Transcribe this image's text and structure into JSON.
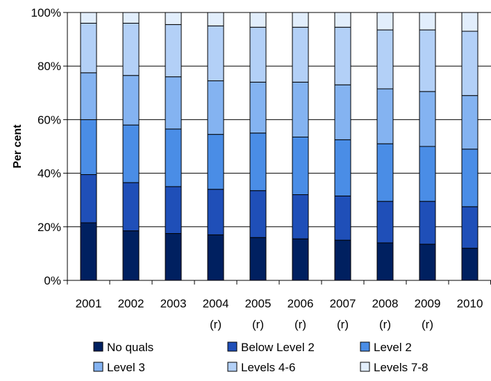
{
  "chart_data": {
    "type": "bar",
    "stacked": true,
    "percent": true,
    "ylabel": "Per cent",
    "xlabel": "",
    "ylim": [
      0,
      100
    ],
    "yticks": [
      "0%",
      "20%",
      "40%",
      "60%",
      "80%",
      "100%"
    ],
    "grid": true,
    "legend_position": "bottom",
    "categories": [
      [
        "2001"
      ],
      [
        "2002"
      ],
      [
        "2003"
      ],
      [
        "2004",
        "(r)"
      ],
      [
        "2005",
        "(r)"
      ],
      [
        "2006",
        "(r)"
      ],
      [
        "2007",
        "(r)"
      ],
      [
        "2008",
        "(r)"
      ],
      [
        "2009",
        "(r)"
      ],
      [
        "2010"
      ]
    ],
    "series": [
      {
        "name": "No quals",
        "color": "#002060",
        "values": [
          21.5,
          18.5,
          17.5,
          17.0,
          16.0,
          15.5,
          15.0,
          14.0,
          13.5,
          12.0
        ]
      },
      {
        "name": "Below Level 2",
        "color": "#1F4FB8",
        "values": [
          18.0,
          18.0,
          17.5,
          17.0,
          17.5,
          16.5,
          16.5,
          15.5,
          16.0,
          15.5
        ]
      },
      {
        "name": "Level 2",
        "color": "#4A8DE6",
        "values": [
          20.5,
          21.5,
          21.5,
          20.5,
          21.5,
          21.5,
          21.0,
          21.5,
          20.5,
          21.5
        ]
      },
      {
        "name": "Level 3",
        "color": "#84B3F1",
        "values": [
          17.5,
          18.5,
          19.5,
          20.0,
          19.0,
          20.5,
          20.5,
          20.5,
          20.5,
          20.0
        ]
      },
      {
        "name": "Levels 4-6",
        "color": "#B3D0F7",
        "values": [
          18.5,
          19.5,
          19.5,
          20.5,
          20.5,
          20.5,
          21.5,
          22.0,
          23.0,
          24.0
        ]
      },
      {
        "name": "Levels 7-8",
        "color": "#E2EEFC",
        "values": [
          4.0,
          4.0,
          4.5,
          5.0,
          5.5,
          5.5,
          5.5,
          6.5,
          6.5,
          7.0
        ]
      }
    ]
  }
}
